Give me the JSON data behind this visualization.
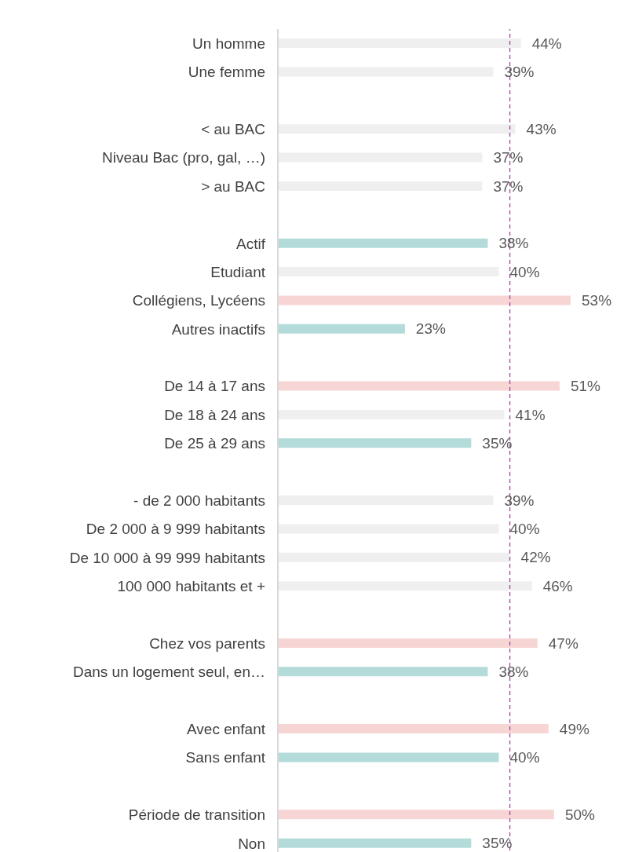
{
  "chart_data": {
    "type": "bar",
    "orientation": "horizontal",
    "categories": [
      "Un homme",
      "Une femme",
      null,
      "< au BAC",
      "Niveau Bac (pro, gal, …)",
      "> au BAC",
      null,
      "Actif",
      "Etudiant",
      "Collégiens, Lycéens",
      "Autres inactifs",
      null,
      "De 14 à 17 ans",
      "De 18 à 24 ans",
      "De 25 à 29 ans",
      null,
      "- de 2 000 habitants",
      "De 2 000 à 9 999 habitants",
      "De 10 000 à 99 999 habitants",
      "100 000 habitants et +",
      null,
      "Chez vos parents",
      "Dans un logement seul, en…",
      null,
      "Avec enfant",
      "Sans enfant",
      null,
      "Période de transition",
      "Non"
    ],
    "values": [
      44,
      39,
      null,
      43,
      37,
      37,
      null,
      38,
      40,
      53,
      23,
      null,
      51,
      41,
      35,
      null,
      39,
      40,
      42,
      46,
      null,
      47,
      38,
      null,
      49,
      40,
      null,
      50,
      35
    ],
    "value_labels": [
      "44%",
      "39%",
      null,
      "43%",
      "37%",
      "37%",
      null,
      "38%",
      "40%",
      "53%",
      "23%",
      null,
      "51%",
      "41%",
      "35%",
      null,
      "39%",
      "40%",
      "42%",
      "46%",
      null,
      "47%",
      "38%",
      null,
      "49%",
      "40%",
      null,
      "50%",
      "35%"
    ],
    "colors": [
      "#efefef",
      "#efefef",
      null,
      "#efefef",
      "#efefef",
      "#efefef",
      null,
      "#b2dbd9",
      "#efefef",
      "#f8d5d5",
      "#b2dbd9",
      null,
      "#f8d5d5",
      "#efefef",
      "#b2dbd9",
      null,
      "#efefef",
      "#efefef",
      "#efefef",
      "#efefef",
      null,
      "#f8d5d5",
      "#b2dbd9",
      null,
      "#f8d5d5",
      "#b2dbd9",
      null,
      "#f8d5d5",
      "#b2dbd9"
    ],
    "ref_lines": [
      {
        "axis": "x",
        "value": 42,
        "color": "#9b4f9b",
        "line_style": "dashed"
      }
    ]
  }
}
